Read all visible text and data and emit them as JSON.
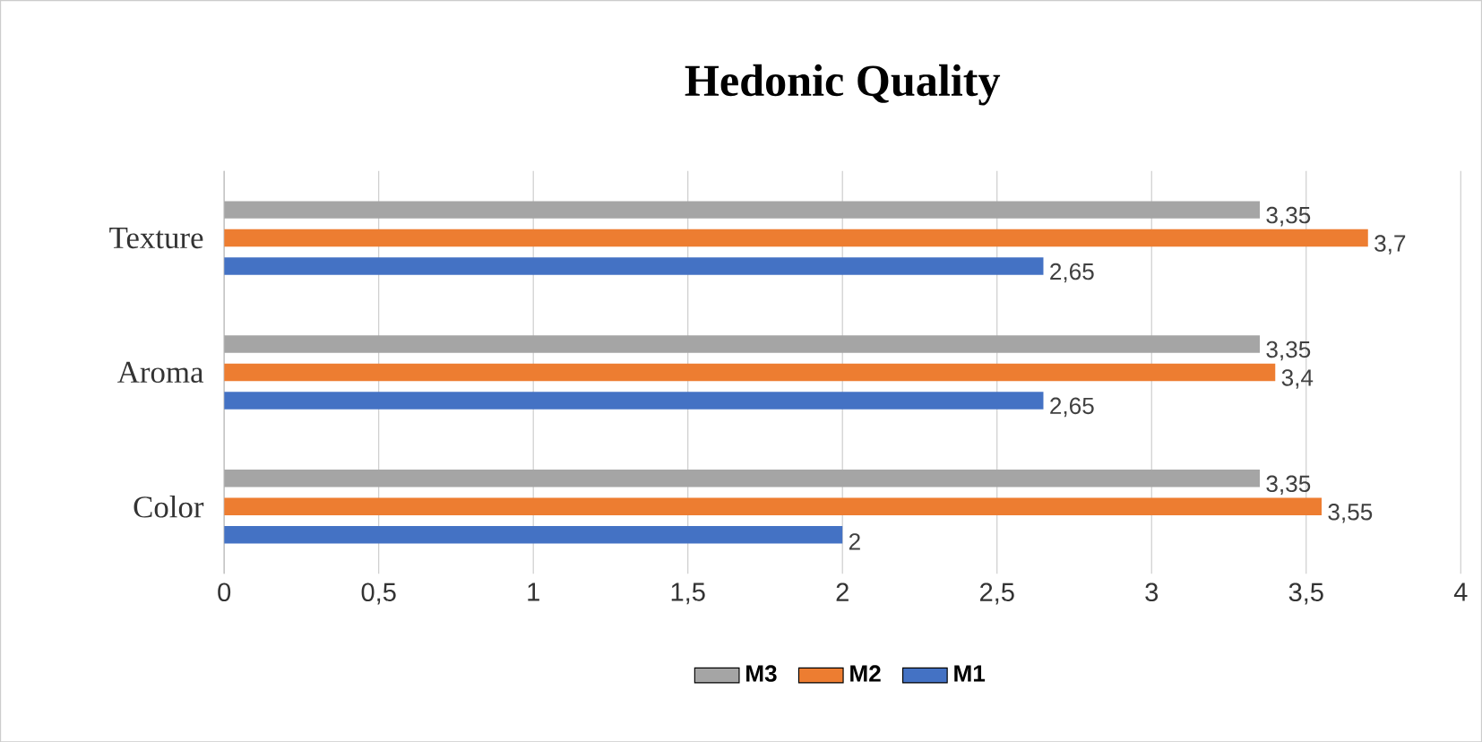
{
  "chart_data": {
    "type": "bar",
    "orientation": "horizontal",
    "title": "Hedonic Quality",
    "categories": [
      "Texture",
      "Aroma",
      "Color"
    ],
    "series": [
      {
        "name": "M3",
        "color": "#a5a5a5",
        "values": [
          3.35,
          3.35,
          3.35
        ],
        "value_labels": [
          "3,35",
          "3,35",
          "3,35"
        ]
      },
      {
        "name": "M2",
        "color": "#ed7d31",
        "values": [
          3.7,
          3.4,
          3.55
        ],
        "value_labels": [
          "3,7",
          "3,4",
          "3,55"
        ]
      },
      {
        "name": "M1",
        "color": "#4472c4",
        "values": [
          2.65,
          2.65,
          2
        ],
        "value_labels": [
          "2,65",
          "2,65",
          "2"
        ]
      }
    ],
    "xlim": [
      0,
      4
    ],
    "xticks": [
      0,
      {
        "value": 0.5,
        "label": "0,5"
      },
      1,
      {
        "value": 1.5,
        "label": "1,5"
      },
      2,
      {
        "value": 2.5,
        "label": "2,5"
      },
      3,
      {
        "value": 3.5,
        "label": "3,5"
      },
      4
    ],
    "grid": "x",
    "legend": "bottom"
  }
}
